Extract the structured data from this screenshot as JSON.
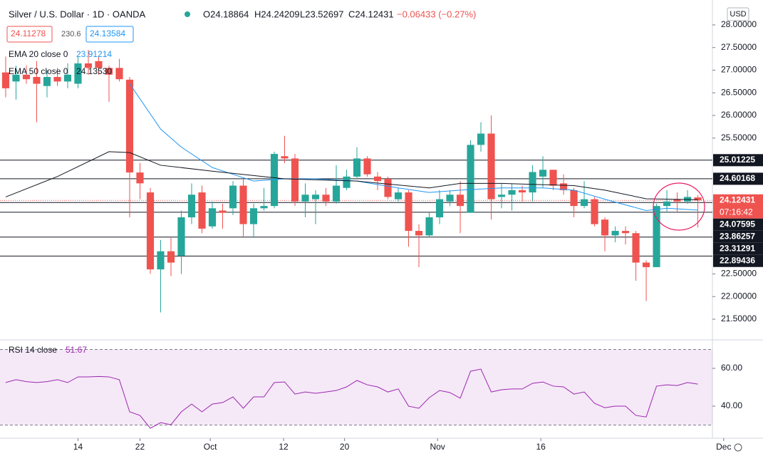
{
  "header": {
    "symbol": "Silver / U.S. Dollar · 1D · OANDA",
    "open": "O24.18864",
    "high": "H24.24209",
    "low": "L23.52697",
    "close": "C24.12431",
    "change": "−0.06433 (−0.27%)",
    "bid": "24.11278",
    "spread": "230.6",
    "ask": "24.13584",
    "currency": "USD",
    "ema20_label": "EMA 20 close 0",
    "ema20_value": "23.91214",
    "ema50_label": "EMA 50 close 0",
    "ema50_value": "24.13530",
    "rsi_label": "RSI 14 close",
    "rsi_value": "51.67",
    "countdown": "07:16:42"
  },
  "chart_data": {
    "type": "candlestick",
    "title": "Silver / U.S. Dollar · 1D · OANDA",
    "up_color": "#26a69a",
    "down_color": "#ef5350",
    "xlim": [
      -0.55,
      68.41
    ],
    "xticks": [
      {
        "value": 7,
        "label": "14"
      },
      {
        "value": 13,
        "label": "22"
      },
      {
        "value": 19.8,
        "label": "Oct"
      },
      {
        "value": 26.9,
        "label": "12"
      },
      {
        "value": 32.8,
        "label": "20"
      },
      {
        "value": 41.8,
        "label": "Nov"
      },
      {
        "value": 51.8,
        "label": "16"
      },
      {
        "value": 69.5,
        "label": "Dec"
      }
    ],
    "ylim": [
      21.075,
      28.55
    ],
    "yticks": [
      {
        "value": 28,
        "label": "28.00000"
      },
      {
        "value": 27.5,
        "label": "27.50000"
      },
      {
        "value": 27,
        "label": "27.00000"
      },
      {
        "value": 26.5,
        "label": "26.50000"
      },
      {
        "value": 26,
        "label": "26.00000"
      },
      {
        "value": 25.5,
        "label": "25.50000"
      },
      {
        "value": 22.5,
        "label": "22.50000"
      },
      {
        "value": 22,
        "label": "22.00000"
      },
      {
        "value": 21.5,
        "label": "21.50000"
      }
    ],
    "candles": {
      "open": [
        26.95,
        26.75,
        26.9,
        26.85,
        26.65,
        26.85,
        26.75,
        26.7,
        27.15,
        27.2,
        27.05,
        27.05,
        26.79,
        24.74,
        24.3,
        22.6,
        23.0,
        22.9,
        23.75,
        24.3,
        23.55,
        23.9,
        23.95,
        24.45,
        23.6,
        23.95,
        24.0,
        25.1,
        25.05,
        24.1,
        24.15,
        24.25,
        24.1,
        24.4,
        24.65,
        25.05,
        24.65,
        24.6,
        24.15,
        24.3,
        23.45,
        23.35,
        23.75,
        24.1,
        24.25,
        23.85,
        25.35,
        25.6,
        24.2,
        24.25,
        24.35,
        24.3,
        24.65,
        24.8,
        24.5,
        24.35,
        24.0,
        24.15,
        23.7,
        23.35,
        23.45,
        23.4,
        22.75,
        22.65,
        24.0,
        24.15,
        24.1,
        24.18864
      ],
      "high": [
        27.3,
        27.1,
        27.1,
        27.2,
        27.0,
        27.05,
        27.15,
        27.3,
        27.45,
        27.3,
        27.1,
        27.25,
        26.85,
        24.95,
        24.4,
        23.25,
        23.3,
        23.9,
        24.5,
        24.45,
        24.1,
        24.05,
        24.55,
        24.6,
        24.05,
        24.4,
        25.2,
        25.55,
        25.15,
        24.5,
        24.35,
        24.4,
        24.9,
        24.8,
        25.3,
        25.1,
        24.75,
        24.65,
        24.4,
        24.35,
        23.6,
        23.85,
        24.35,
        24.35,
        24.55,
        25.45,
        25.85,
        26.0,
        24.5,
        24.5,
        24.45,
        24.9,
        25.1,
        24.8,
        24.7,
        24.4,
        24.55,
        24.2,
        23.75,
        23.55,
        23.55,
        23.45,
        22.8,
        24.05,
        24.35,
        24.3,
        24.35,
        24.24209
      ],
      "low": [
        26.4,
        26.35,
        26.7,
        25.85,
        26.4,
        26.65,
        26.6,
        26.6,
        26.9,
        26.9,
        26.3,
        26.75,
        23.75,
        24.15,
        22.5,
        21.65,
        22.45,
        22.5,
        23.6,
        23.4,
        23.5,
        23.5,
        23.8,
        23.3,
        23.3,
        23.9,
        23.95,
        24.95,
        24.0,
        23.75,
        23.6,
        24.0,
        24.05,
        24.35,
        24.6,
        24.65,
        24.35,
        24.15,
        24.1,
        23.1,
        22.65,
        23.3,
        23.6,
        24.0,
        23.4,
        23.85,
        25.2,
        23.7,
        23.95,
        23.9,
        24.1,
        24.1,
        24.4,
        24.35,
        24.25,
        23.75,
        23.95,
        23.55,
        23.0,
        23.2,
        23.15,
        22.35,
        21.9,
        22.65,
        23.85,
        23.85,
        24.05,
        23.52697
      ],
      "close": [
        26.6,
        26.9,
        26.8,
        26.7,
        26.85,
        26.75,
        26.9,
        27.15,
        27.05,
        27.05,
        26.9,
        26.8,
        24.74,
        24.5,
        22.6,
        23.0,
        22.75,
        23.75,
        24.25,
        23.5,
        23.95,
        23.85,
        24.45,
        23.6,
        23.95,
        24.0,
        25.15,
        25.05,
        24.1,
        24.25,
        24.25,
        24.1,
        24.45,
        24.65,
        25.05,
        24.7,
        24.55,
        24.2,
        24.3,
        23.45,
        23.35,
        23.75,
        24.15,
        24.25,
        24.0,
        25.35,
        25.6,
        24.15,
        24.25,
        24.35,
        24.3,
        24.75,
        24.8,
        24.45,
        24.35,
        24.0,
        24.15,
        23.6,
        23.35,
        23.45,
        23.4,
        22.75,
        22.65,
        24.0,
        24.1,
        24.1,
        24.2,
        24.12431
      ]
    },
    "series": [
      {
        "name": "EMA 20 close 0",
        "color": "#2196f3",
        "x": [
          12,
          15,
          17,
          20,
          24,
          27,
          30,
          34,
          38,
          41,
          44,
          48,
          52,
          55,
          58,
          62,
          64,
          67
        ],
        "values": [
          26.7,
          25.7,
          25.3,
          24.85,
          24.55,
          24.6,
          24.6,
          24.55,
          24.4,
          24.3,
          24.35,
          24.4,
          24.4,
          24.35,
          24.15,
          23.9,
          23.95,
          23.91
        ]
      },
      {
        "name": "EMA 50 close 0",
        "color": "#131722",
        "x": [
          0,
          5,
          10,
          12,
          15,
          20,
          27,
          34,
          41,
          44,
          48,
          55,
          58,
          62,
          67
        ],
        "values": [
          24.2,
          24.65,
          25.2,
          25.18,
          24.9,
          24.77,
          24.6,
          24.55,
          24.4,
          24.5,
          24.5,
          24.45,
          24.35,
          24.16,
          24.14
        ]
      }
    ],
    "levels": [
      25.01225,
      24.60168,
      24.07595,
      23.86257,
      23.31291,
      22.89436
    ],
    "last_price": 24.12431,
    "rsi": {
      "name": "RSI 14 close",
      "color": "#9c27b0",
      "ylim": [
        25.7,
        74.7
      ],
      "band": [
        30,
        70
      ],
      "yticks": [
        {
          "value": 60,
          "label": "60.00"
        },
        {
          "value": 40,
          "label": "40.00"
        }
      ],
      "values": [
        52.5,
        54,
        53,
        52.5,
        53,
        54,
        52.5,
        55.5,
        55.5,
        55.7,
        55.5,
        54,
        37,
        35.1,
        28.3,
        31.3,
        30.2,
        37,
        41.1,
        37,
        41.1,
        41.9,
        44.9,
        38.9,
        44.9,
        44.9,
        52.5,
        52.8,
        46.4,
        47.5,
        46.8,
        47.5,
        48.3,
        50.2,
        53.6,
        51.3,
        50.2,
        47.5,
        49.1,
        40,
        38.9,
        44.5,
        48.3,
        47.2,
        44.2,
        58.5,
        59.6,
        47.5,
        48.7,
        49.1,
        49.1,
        52.1,
        52.8,
        50.6,
        50.2,
        46.4,
        47.5,
        41.5,
        39.2,
        40,
        40,
        35.1,
        34.3,
        50.6,
        51.3,
        50.9,
        52.5,
        51.67
      ]
    }
  }
}
